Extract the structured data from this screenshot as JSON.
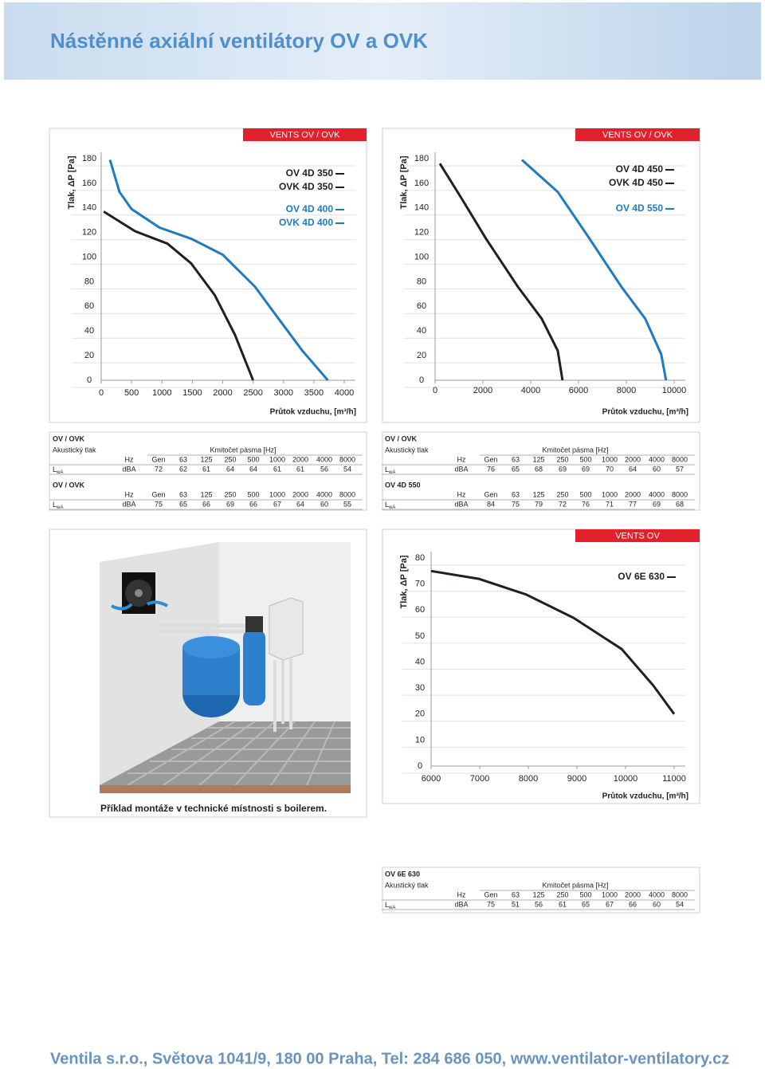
{
  "header": {
    "title": "Nástěnné axiální ventilátory OV a OVK"
  },
  "chart_data": [
    {
      "type": "line",
      "badge": "VENTS OV / OVK",
      "y_label": "Tlak, ΔP [Pa]",
      "x_label": "Průtok vzduchu, [m³/h]",
      "xlim": [
        0,
        4000
      ],
      "xticks": [
        0,
        500,
        1000,
        1500,
        2000,
        2500,
        3000,
        3500,
        4000
      ],
      "ylim": [
        0,
        180
      ],
      "yticks": [
        0,
        20,
        40,
        60,
        80,
        100,
        120,
        140,
        160,
        180
      ],
      "grid": true,
      "series": [
        {
          "name": [
            "OV 4D 350",
            "OVK 4D 350"
          ],
          "color": "#231f20",
          "x": [
            40,
            560,
            1090,
            1480,
            1870,
            2200,
            2500
          ],
          "values": [
            137,
            121,
            111,
            95,
            69,
            37,
            0
          ]
        },
        {
          "name": [
            "OV 4D 400",
            "OVK 4D 400"
          ],
          "color": "#1f7bbf",
          "x": [
            144,
            300,
            500,
            960,
            1480,
            2000,
            2530,
            2920,
            3310,
            3730
          ],
          "values": [
            179,
            153,
            139,
            124,
            115,
            102,
            76,
            50,
            24,
            0
          ]
        }
      ]
    },
    {
      "type": "line",
      "badge": "VENTS OV / OVK",
      "y_label": "Tlak, ΔP [Pa]",
      "x_label": "Průtok vzduchu, [m³/h]",
      "xlim": [
        0,
        10000
      ],
      "xticks": [
        0,
        2000,
        4000,
        6000,
        8000,
        10000
      ],
      "ylim": [
        0,
        180
      ],
      "yticks": [
        0,
        20,
        40,
        60,
        80,
        100,
        120,
        140,
        160,
        180
      ],
      "grid": true,
      "series": [
        {
          "name": [
            "OV 4D 450",
            "OVK 4D 450"
          ],
          "color": "#231f20",
          "x": [
            200,
            1130,
            2130,
            3460,
            4460,
            5130,
            5330
          ],
          "values": [
            176,
            147,
            115,
            76,
            50,
            24,
            0
          ]
        },
        {
          "name": [
            "OV 4D 550"
          ],
          "color": "#1f7bbf",
          "x": [
            3630,
            5130,
            6460,
            7790,
            8790,
            9460,
            9660
          ],
          "values": [
            179,
            153,
            115,
            76,
            50,
            21,
            0
          ]
        }
      ]
    },
    {
      "type": "line",
      "badge": "VENTS OV",
      "y_label": "Tlak, ΔP [Pa]",
      "x_label": "Průtok vzduchu, [m³/h]",
      "xlim": [
        6000,
        11000
      ],
      "xticks": [
        6000,
        7000,
        8000,
        9000,
        10000,
        11000
      ],
      "ylim": [
        0,
        80
      ],
      "yticks": [
        0,
        10,
        20,
        30,
        40,
        50,
        60,
        70,
        80
      ],
      "grid": true,
      "series": [
        {
          "name": [
            "OV 6E 630"
          ],
          "color": "#231f20",
          "x": [
            6000,
            6980,
            7950,
            8930,
            9920,
            10570,
            11000
          ],
          "values": [
            75,
            72,
            66,
            57,
            45,
            31,
            20
          ]
        }
      ]
    }
  ],
  "tables": [
    {
      "title": "OV / OVK",
      "subtitle": "Akustický tlak",
      "band": "Kmitočet pásma [Hz]",
      "header": [
        "Hz",
        "Gen",
        63,
        125,
        250,
        500,
        1000,
        2000,
        4000,
        8000
      ],
      "row_label": "L",
      "row_label_sub": "wA",
      "row": [
        "dBA",
        72,
        62,
        61,
        64,
        64,
        61,
        61,
        56,
        54
      ]
    },
    {
      "title": "OV / OVK",
      "header": [
        "Hz",
        "Gen",
        63,
        125,
        250,
        500,
        1000,
        2000,
        4000,
        8000
      ],
      "row_label": "L",
      "row_label_sub": "wA",
      "row": [
        "dBA",
        75,
        65,
        66,
        69,
        66,
        67,
        64,
        60,
        55
      ]
    },
    {
      "title": "OV / OVK",
      "subtitle": "Akustický tlak",
      "band": "Kmitočet pásma [Hz]",
      "header": [
        "Hz",
        "Gen",
        63,
        125,
        250,
        500,
        1000,
        2000,
        4000,
        8000
      ],
      "row_label": "L",
      "row_label_sub": "wA",
      "row": [
        "dBA",
        76,
        65,
        68,
        69,
        69,
        70,
        64,
        60,
        57
      ]
    },
    {
      "title": "OV 4D 550",
      "header": [
        "Hz",
        "Gen",
        63,
        125,
        250,
        500,
        1000,
        2000,
        4000,
        8000
      ],
      "row_label": "L",
      "row_label_sub": "wA",
      "row": [
        "dBA",
        84,
        75,
        79,
        72,
        76,
        71,
        77,
        69,
        68
      ]
    },
    {
      "title": "OV 6E 630",
      "subtitle": "Akustický tlak",
      "band": "Kmitočet pásma [Hz]",
      "header": [
        "Hz",
        "Gen",
        63,
        125,
        250,
        500,
        1000,
        2000,
        4000,
        8000
      ],
      "row_label": "L",
      "row_label_sub": "wA",
      "row": [
        "dBA",
        75,
        51,
        56,
        61,
        65,
        67,
        66,
        60,
        54
      ]
    }
  ],
  "figure": {
    "caption": "Příklad montáže v technické místnosti s boilerem."
  },
  "footer": {
    "text": "Ventila s.r.o., Světova 1041/9, 180 00 Praha, Tel: 284 686 050, www.ventilator-ventilatory.cz"
  }
}
